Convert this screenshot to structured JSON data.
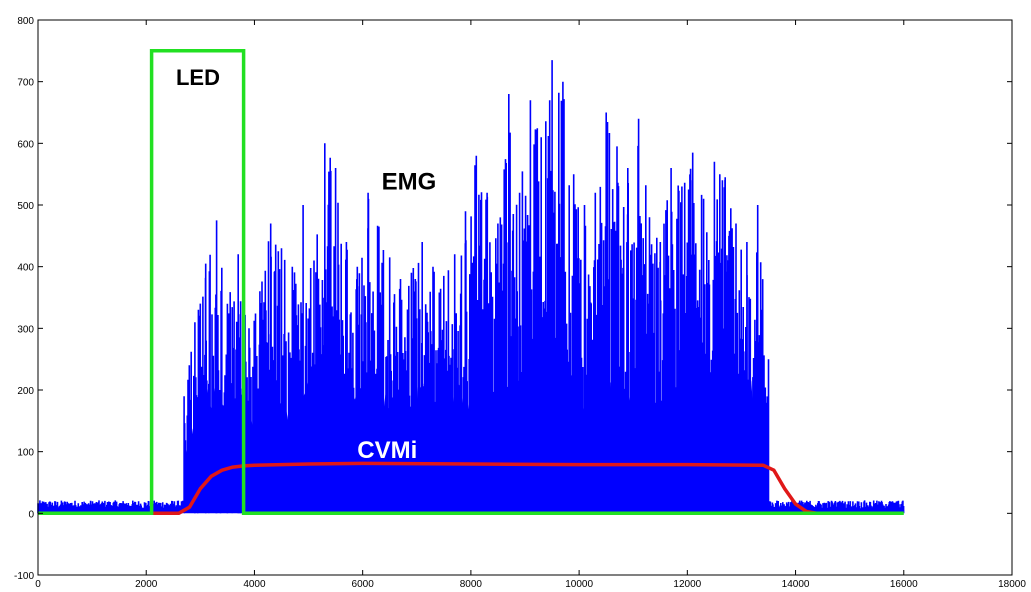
{
  "chart_data": {
    "type": "line",
    "title": "",
    "xlabel": "",
    "ylabel": "",
    "xlim": [
      0,
      18000
    ],
    "ylim": [
      -100,
      800
    ],
    "grid": false,
    "x_ticks": [
      "0",
      "2000",
      "4000",
      "6000",
      "8000",
      "10000",
      "12000",
      "14000",
      "16000",
      "18000"
    ],
    "y_ticks": [
      "-100",
      "0",
      "100",
      "200",
      "300",
      "400",
      "500",
      "600",
      "700",
      "800"
    ],
    "annotations": {
      "led": "LED",
      "emg": "EMG",
      "cvmi": "CVMi"
    },
    "colors": {
      "emg": "#0000ff",
      "led": "#22e022",
      "cvmi": "#e01818",
      "axes": "#000000",
      "cvmi_label": "#ffffff"
    },
    "series": [
      {
        "key": "emg",
        "style": "dense-signal",
        "baseline": {
          "x": [
            0,
            2600,
            13500,
            16000
          ],
          "value": 15
        },
        "envelope_peaks": {
          "x": [
            2700,
            2900,
            3100,
            3300,
            3500,
            3700,
            3900,
            4100,
            4300,
            4500,
            4700,
            4900,
            5100,
            5300,
            5500,
            5700,
            5900,
            6100,
            6300,
            6500,
            6700,
            6900,
            7100,
            7300,
            7500,
            7700,
            7900,
            8100,
            8300,
            8500,
            8700,
            8900,
            9100,
            9300,
            9500,
            9700,
            9900,
            10100,
            10300,
            10500,
            10700,
            10900,
            11100,
            11300,
            11500,
            11700,
            11900,
            12100,
            12300,
            12500,
            12700,
            12900,
            13100,
            13300,
            13500
          ],
          "y": [
            190,
            310,
            405,
            475,
            340,
            420,
            300,
            360,
            470,
            430,
            400,
            500,
            410,
            600,
            560,
            440,
            400,
            520,
            465,
            415,
            380,
            390,
            440,
            400,
            385,
            420,
            490,
            580,
            520,
            470,
            680,
            520,
            670,
            610,
            735,
            700,
            550,
            500,
            520,
            650,
            595,
            560,
            640,
            480,
            440,
            560,
            530,
            585,
            510,
            570,
            545,
            470,
            440,
            500,
            250
          ]
        }
      },
      {
        "key": "led",
        "style": "step",
        "x": [
          0,
          2100,
          2100,
          3800,
          3800,
          16000
        ],
        "y": [
          0,
          0,
          750,
          750,
          0,
          0
        ]
      },
      {
        "key": "cvmi",
        "style": "line",
        "x": [
          0,
          2600,
          2800,
          3000,
          3200,
          3400,
          3600,
          3800,
          4000,
          5000,
          6000,
          8000,
          10000,
          12000,
          13400,
          13600,
          13800,
          14000,
          14200,
          14400
        ],
        "y": [
          0,
          0,
          10,
          40,
          60,
          70,
          75,
          77,
          78,
          80,
          81,
          80,
          79,
          79,
          78,
          70,
          40,
          15,
          3,
          0
        ]
      }
    ]
  }
}
